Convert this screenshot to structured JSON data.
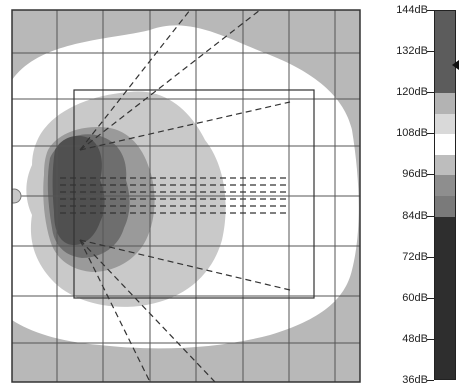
{
  "chart_data": {
    "type": "heatmap",
    "title": "",
    "colorbar": {
      "unit": "dB",
      "range": [
        36,
        144
      ],
      "ticks": [
        "144dB",
        "132dB",
        "120dB",
        "108dB",
        "96dB",
        "84dB",
        "72dB",
        "60dB",
        "48dB",
        "36dB"
      ],
      "tick_values": [
        144,
        132,
        120,
        108,
        96,
        84,
        72,
        60,
        48,
        36
      ],
      "bands": [
        {
          "from": 36,
          "to": 84,
          "color": "#2e2e2e"
        },
        {
          "from": 84,
          "to": 90,
          "color": "#7a7a7a"
        },
        {
          "from": 90,
          "to": 96,
          "color": "#8e8e8e"
        },
        {
          "from": 96,
          "to": 102,
          "color": "#bdbdbd"
        },
        {
          "from": 102,
          "to": 108,
          "color": "#ffffff"
        },
        {
          "from": 108,
          "to": 114,
          "color": "#d9d9d9"
        },
        {
          "from": 114,
          "to": 120,
          "color": "#b3b3b3"
        },
        {
          "from": 120,
          "to": 144,
          "color": "#5c5c5c"
        }
      ],
      "marker_value": 128
    },
    "contour_levels": [
      {
        "level": "outer",
        "color": "#b8b8b8"
      },
      {
        "level": "white",
        "color": "#ffffff"
      },
      {
        "level": "light",
        "color": "#c9c9c9"
      },
      {
        "level": "mid",
        "color": "#9a9a9a"
      },
      {
        "level": "dark",
        "color": "#6e6e6e"
      },
      {
        "level": "core",
        "color": "#505050"
      }
    ],
    "grid": true,
    "legend": "right"
  }
}
